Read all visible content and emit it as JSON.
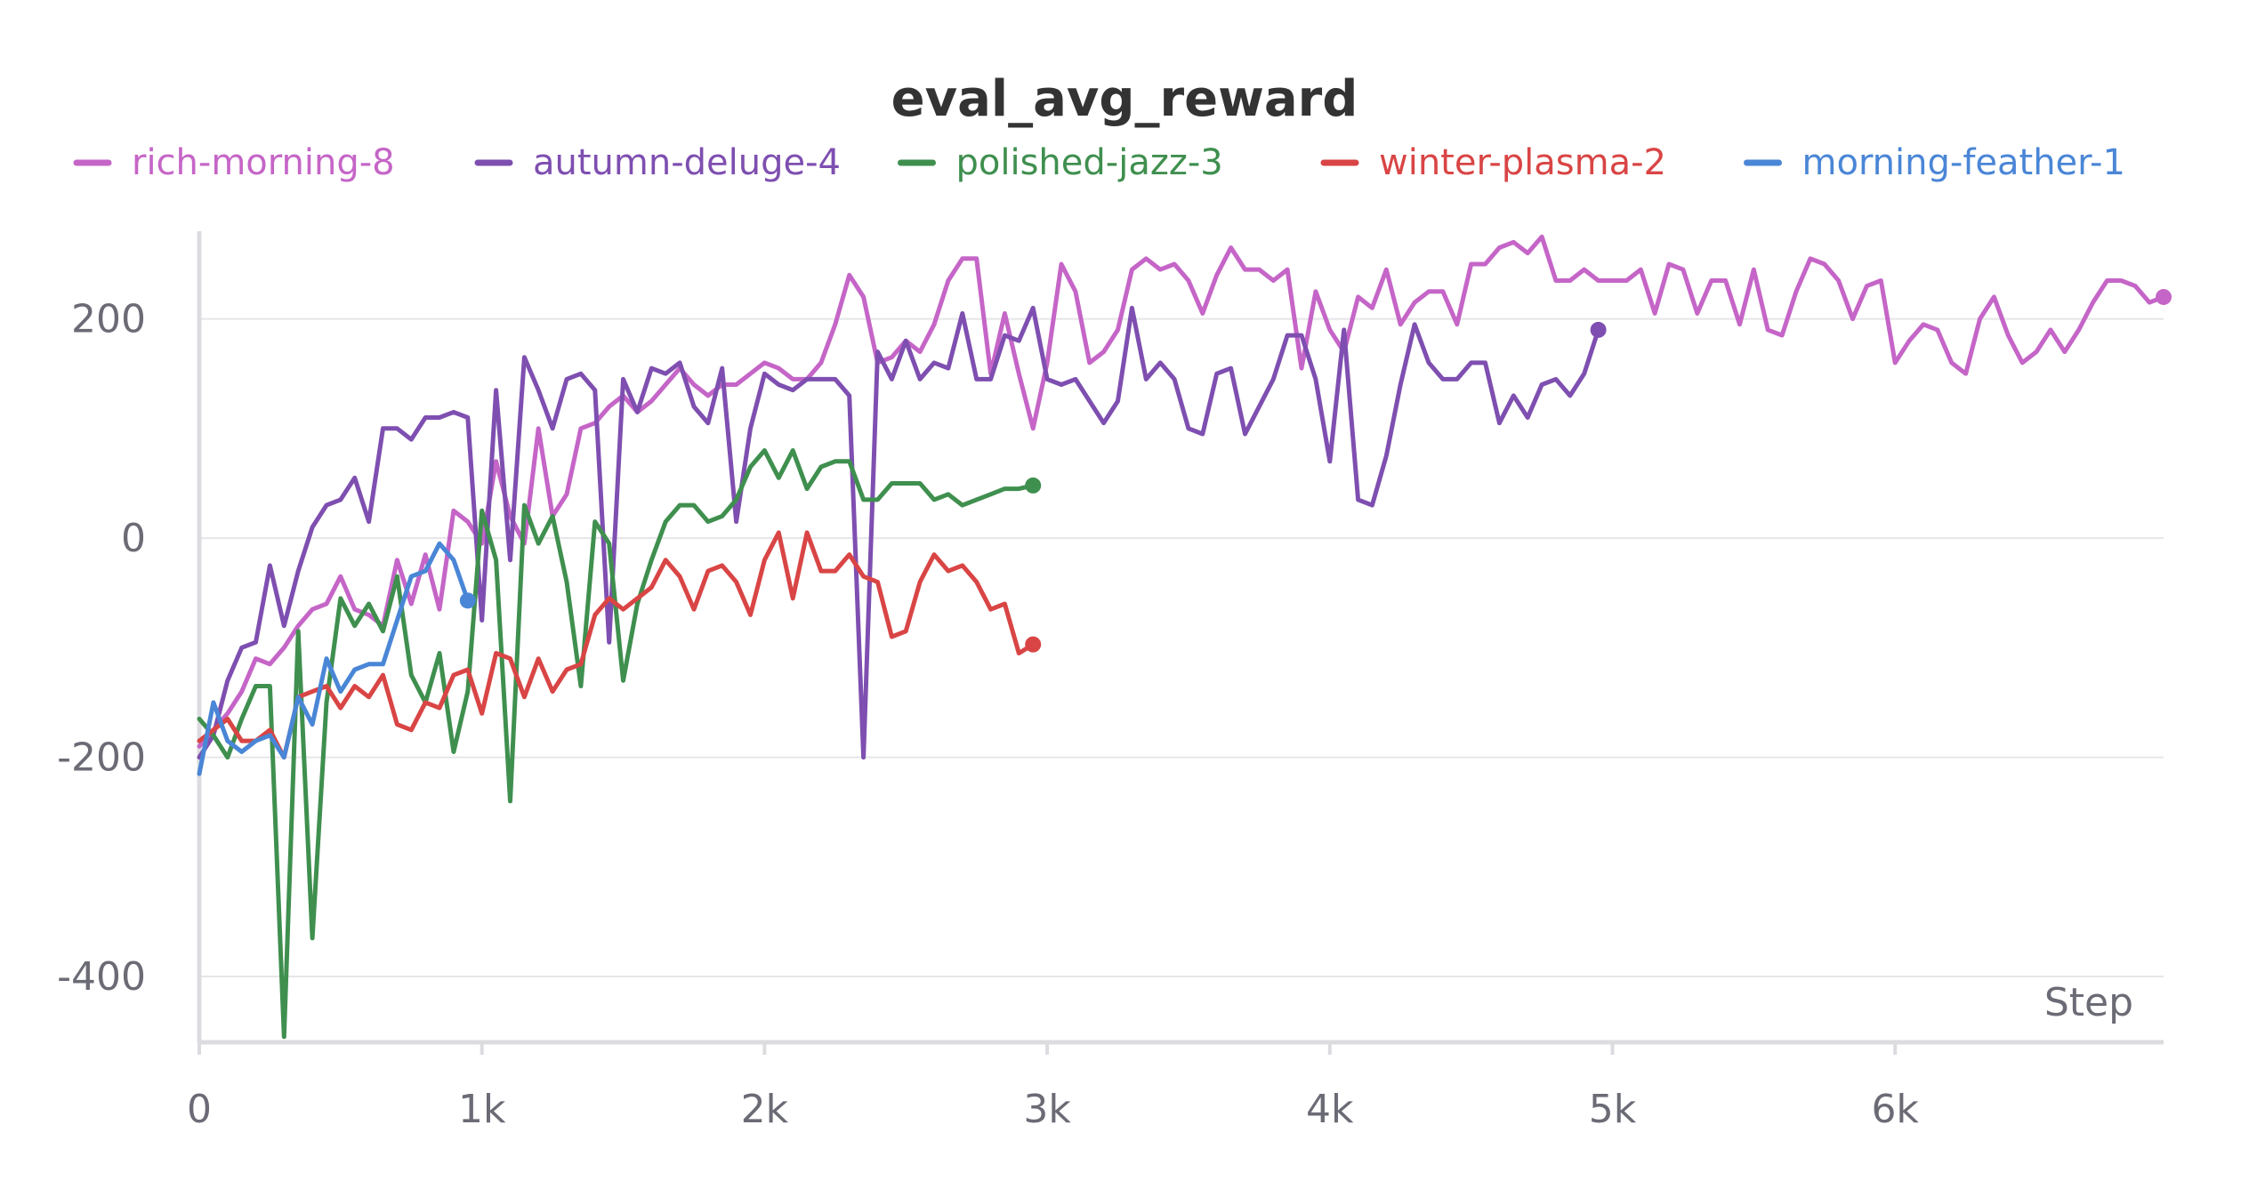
{
  "chart_data": {
    "type": "line",
    "title": "eval_avg_reward",
    "xlabel": "Step",
    "ylabel": "",
    "xlim": [
      0,
      6950
    ],
    "ylim": [
      -460,
      280
    ],
    "x_ticks": [
      {
        "value": 0,
        "label": "0"
      },
      {
        "value": 1000,
        "label": "1k"
      },
      {
        "value": 2000,
        "label": "2k"
      },
      {
        "value": 3000,
        "label": "3k"
      },
      {
        "value": 4000,
        "label": "4k"
      },
      {
        "value": 5000,
        "label": "5k"
      },
      {
        "value": 6000,
        "label": "6k"
      }
    ],
    "y_ticks": [
      {
        "value": 200,
        "label": "200"
      },
      {
        "value": 0,
        "label": "0"
      },
      {
        "value": -200,
        "label": "-200"
      },
      {
        "value": -400,
        "label": "-400"
      }
    ],
    "grid": true,
    "legend_position": "top",
    "series": [
      {
        "name": "rich-morning-8",
        "color": "#c565c7",
        "x": [
          0,
          50,
          100,
          150,
          200,
          250,
          300,
          350,
          400,
          450,
          500,
          550,
          600,
          650,
          700,
          750,
          800,
          850,
          900,
          950,
          1000,
          1050,
          1100,
          1150,
          1200,
          1250,
          1300,
          1350,
          1400,
          1450,
          1500,
          1550,
          1600,
          1650,
          1700,
          1750,
          1800,
          1850,
          1900,
          1950,
          2000,
          2050,
          2100,
          2150,
          2200,
          2250,
          2300,
          2350,
          2400,
          2450,
          2500,
          2550,
          2600,
          2650,
          2700,
          2750,
          2800,
          2850,
          2900,
          2950,
          3000,
          3050,
          3100,
          3150,
          3200,
          3250,
          3300,
          3350,
          3400,
          3450,
          3500,
          3550,
          3600,
          3650,
          3700,
          3750,
          3800,
          3850,
          3900,
          3950,
          4000,
          4050,
          4100,
          4150,
          4200,
          4250,
          4300,
          4350,
          4400,
          4450,
          4500,
          4550,
          4600,
          4650,
          4700,
          4750,
          4800,
          4850,
          4900,
          4950,
          5000,
          5050,
          5100,
          5150,
          5200,
          5250,
          5300,
          5350,
          5400,
          5450,
          5500,
          5550,
          5600,
          5650,
          5700,
          5750,
          5800,
          5850,
          5900,
          5950,
          6000,
          6050,
          6100,
          6150,
          6200,
          6250,
          6300,
          6350,
          6400,
          6450,
          6500,
          6550,
          6600,
          6650,
          6700,
          6750,
          6800,
          6850,
          6900,
          6950
        ],
        "values": [
          -190,
          -175,
          -160,
          -140,
          -110,
          -115,
          -100,
          -80,
          -65,
          -60,
          -35,
          -65,
          -70,
          -80,
          -20,
          -60,
          -15,
          -65,
          25,
          15,
          -5,
          70,
          20,
          -5,
          100,
          20,
          40,
          100,
          105,
          120,
          130,
          115,
          125,
          140,
          155,
          140,
          130,
          140,
          140,
          150,
          160,
          155,
          145,
          145,
          160,
          195,
          240,
          220,
          160,
          165,
          180,
          170,
          195,
          235,
          255,
          255,
          150,
          205,
          150,
          100,
          160,
          250,
          225,
          160,
          170,
          190,
          245,
          255,
          245,
          250,
          235,
          205,
          240,
          265,
          245,
          245,
          235,
          245,
          155,
          225,
          190,
          170,
          220,
          210,
          245,
          195,
          215,
          225,
          225,
          195,
          250,
          250,
          265,
          270,
          260,
          275,
          235,
          235,
          245,
          235,
          235,
          235,
          245,
          205,
          250,
          245,
          205,
          235,
          235,
          195,
          245,
          190,
          185,
          225,
          255,
          250,
          235,
          200,
          230,
          235,
          160,
          180,
          195,
          190,
          160,
          150,
          200,
          220,
          185,
          160,
          170,
          190,
          170,
          190,
          215,
          235,
          235,
          230,
          215,
          220
        ]
      },
      {
        "name": "autumn-deluge-4",
        "color": "#7e4fb0",
        "x": [
          0,
          50,
          100,
          150,
          200,
          250,
          300,
          350,
          400,
          450,
          500,
          550,
          600,
          650,
          700,
          750,
          800,
          850,
          900,
          950,
          1000,
          1050,
          1100,
          1150,
          1200,
          1250,
          1300,
          1350,
          1400,
          1450,
          1500,
          1550,
          1600,
          1650,
          1700,
          1750,
          1800,
          1850,
          1900,
          1950,
          2000,
          2050,
          2100,
          2150,
          2200,
          2250,
          2300,
          2350,
          2400,
          2450,
          2500,
          2550,
          2600,
          2650,
          2700,
          2750,
          2800,
          2850,
          2900,
          2950,
          3000,
          3050,
          3100,
          3150,
          3200,
          3250,
          3300,
          3350,
          3400,
          3450,
          3500,
          3550,
          3600,
          3650,
          3700,
          3750,
          3800,
          3850,
          3900,
          3950,
          4000,
          4050,
          4100,
          4150,
          4200,
          4250,
          4300,
          4350,
          4400,
          4450,
          4500,
          4550,
          4600,
          4650,
          4700,
          4750,
          4800,
          4850,
          4900,
          4950
        ],
        "values": [
          -200,
          -180,
          -130,
          -100,
          -95,
          -25,
          -80,
          -30,
          10,
          30,
          35,
          55,
          15,
          100,
          100,
          90,
          110,
          110,
          115,
          110,
          -75,
          135,
          -20,
          165,
          135,
          100,
          145,
          150,
          135,
          -95,
          145,
          115,
          155,
          150,
          160,
          120,
          105,
          155,
          15,
          100,
          150,
          140,
          135,
          145,
          145,
          145,
          130,
          -200,
          170,
          145,
          180,
          145,
          160,
          155,
          205,
          145,
          145,
          185,
          180,
          210,
          145,
          140,
          145,
          125,
          105,
          125,
          210,
          145,
          160,
          145,
          100,
          95,
          150,
          155,
          95,
          120,
          145,
          185,
          185,
          145,
          70,
          190,
          35,
          30,
          75,
          140,
          195,
          160,
          145,
          145,
          160,
          160,
          105,
          130,
          110,
          140,
          145,
          130,
          150,
          190
        ]
      },
      {
        "name": "polished-jazz-3",
        "color": "#3f8f4f",
        "x": [
          0,
          50,
          100,
          150,
          200,
          250,
          300,
          350,
          400,
          450,
          500,
          550,
          600,
          650,
          700,
          750,
          800,
          850,
          900,
          950,
          1000,
          1050,
          1100,
          1150,
          1200,
          1250,
          1300,
          1350,
          1400,
          1450,
          1500,
          1550,
          1600,
          1650,
          1700,
          1750,
          1800,
          1850,
          1900,
          1950,
          2000,
          2050,
          2100,
          2150,
          2200,
          2250,
          2300,
          2350,
          2400,
          2450,
          2500,
          2550,
          2600,
          2650,
          2700,
          2750,
          2800,
          2850,
          2900,
          2950
        ],
        "values": [
          -165,
          -180,
          -200,
          -165,
          -135,
          -135,
          -455,
          -85,
          -365,
          -150,
          -55,
          -80,
          -60,
          -85,
          -35,
          -125,
          -150,
          -105,
          -195,
          -140,
          25,
          -20,
          -240,
          30,
          -5,
          20,
          -40,
          -135,
          15,
          -5,
          -130,
          -60,
          -20,
          15,
          30,
          30,
          15,
          20,
          35,
          65,
          80,
          55,
          80,
          45,
          65,
          70,
          70,
          35,
          35,
          50,
          50,
          50,
          35,
          40,
          30,
          35,
          40,
          45,
          45,
          48
        ]
      },
      {
        "name": "winter-plasma-2",
        "color": "#d94545",
        "x": [
          0,
          50,
          100,
          150,
          200,
          250,
          300,
          350,
          400,
          450,
          500,
          550,
          600,
          650,
          700,
          750,
          800,
          850,
          900,
          950,
          1000,
          1050,
          1100,
          1150,
          1200,
          1250,
          1300,
          1350,
          1400,
          1450,
          1500,
          1550,
          1600,
          1650,
          1700,
          1750,
          1800,
          1850,
          1900,
          1950,
          2000,
          2050,
          2100,
          2150,
          2200,
          2250,
          2300,
          2350,
          2400,
          2450,
          2500,
          2550,
          2600,
          2650,
          2700,
          2750,
          2800,
          2850,
          2900,
          2950
        ],
        "values": [
          -185,
          -175,
          -165,
          -185,
          -185,
          -175,
          -200,
          -145,
          -140,
          -135,
          -155,
          -135,
          -145,
          -125,
          -170,
          -175,
          -150,
          -155,
          -125,
          -120,
          -160,
          -105,
          -110,
          -145,
          -110,
          -140,
          -120,
          -115,
          -70,
          -55,
          -65,
          -55,
          -45,
          -20,
          -35,
          -65,
          -30,
          -25,
          -40,
          -70,
          -20,
          5,
          -55,
          5,
          -30,
          -30,
          -15,
          -35,
          -40,
          -90,
          -85,
          -40,
          -15,
          -30,
          -25,
          -40,
          -65,
          -60,
          -105,
          -97
        ]
      },
      {
        "name": "morning-feather-1",
        "color": "#4a86d6",
        "x": [
          0,
          50,
          100,
          150,
          200,
          250,
          300,
          350,
          400,
          450,
          500,
          550,
          600,
          650,
          700,
          750,
          800,
          850,
          900,
          950
        ],
        "values": [
          -215,
          -150,
          -185,
          -195,
          -185,
          -180,
          -200,
          -145,
          -170,
          -110,
          -140,
          -120,
          -115,
          -115,
          -75,
          -35,
          -30,
          -5,
          -20,
          -57
        ]
      }
    ]
  }
}
